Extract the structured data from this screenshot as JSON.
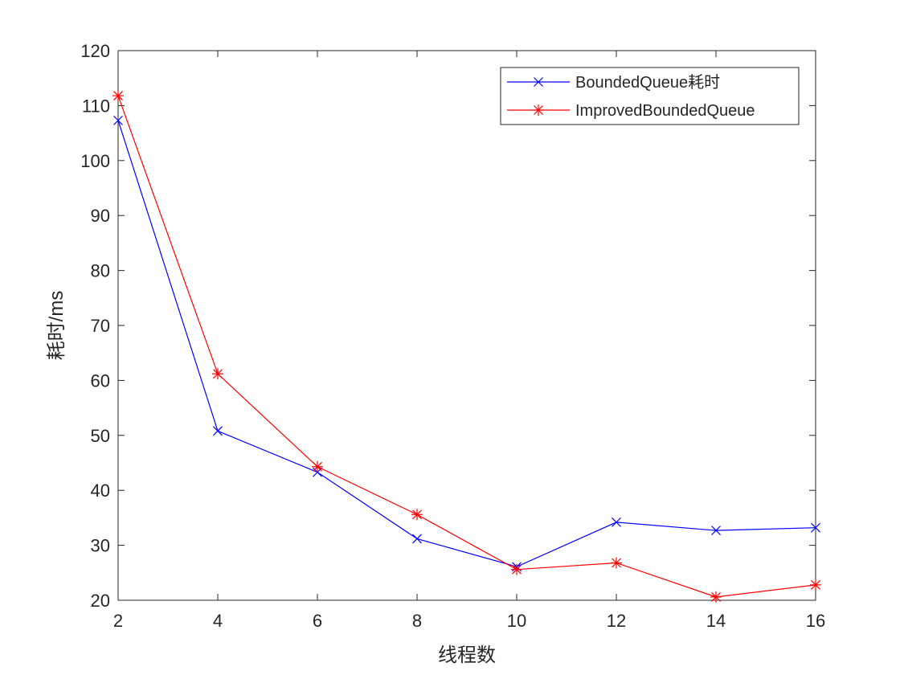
{
  "chart_data": {
    "type": "line",
    "title": "",
    "xlabel": "线程数",
    "ylabel": "耗时/ms",
    "x": [
      2,
      4,
      6,
      8,
      10,
      12,
      14,
      16
    ],
    "xlim": [
      2,
      16
    ],
    "ylim": [
      20,
      120
    ],
    "xticks": [
      2,
      4,
      6,
      8,
      10,
      12,
      14,
      16
    ],
    "yticks": [
      20,
      30,
      40,
      50,
      60,
      70,
      80,
      90,
      100,
      110,
      120
    ],
    "grid": false,
    "legend_position": "top-right",
    "series": [
      {
        "name": "BoundedQueue耗时",
        "color": "#0000ff",
        "marker": "x",
        "values": [
          107.3,
          50.8,
          43.3,
          31.2,
          26.1,
          34.2,
          32.7,
          33.2
        ]
      },
      {
        "name": "ImprovedBoundedQueue",
        "color": "#ff0000",
        "marker": "asterisk",
        "values": [
          111.8,
          61.2,
          44.3,
          35.6,
          25.6,
          26.8,
          20.6,
          22.8
        ]
      }
    ]
  }
}
